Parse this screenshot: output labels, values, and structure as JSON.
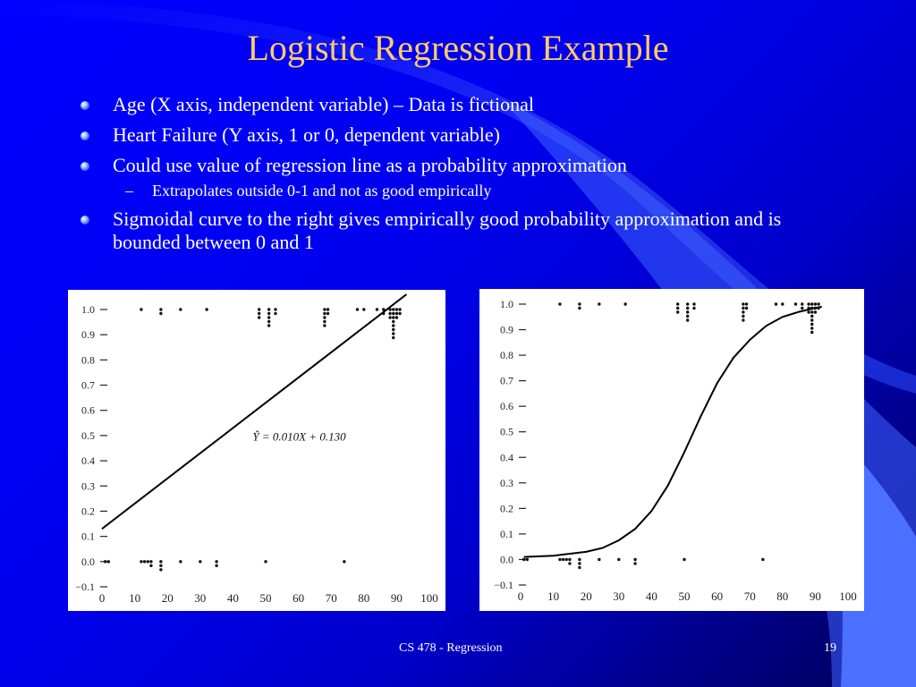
{
  "slide": {
    "title": "Logistic Regression Example",
    "bullets": [
      {
        "text": "Age (X axis, independent variable) – Data is fictional",
        "level": 1
      },
      {
        "text": "Heart Failure (Y axis, 1 or 0, dependent variable)",
        "level": 1
      },
      {
        "text": "Could use value of regression line as a probability approximation",
        "level": 1
      },
      {
        "text": "Extrapolates outside 0-1 and not as good empirically",
        "level": 2
      },
      {
        "text": "Sigmoidal curve to the right gives empirically good probability approximation and is bounded between 0 and 1",
        "level": 1
      }
    ],
    "footer": "CS 478 - Regression",
    "page_number": "19"
  },
  "colors": {
    "title": "#ffcc66",
    "text": "#ffffff",
    "background": "#0000ff"
  },
  "chart_data": [
    {
      "type": "scatter",
      "title": "",
      "xlabel": "",
      "ylabel": "",
      "xlim": [
        0,
        100
      ],
      "ylim": [
        -0.1,
        1.0
      ],
      "x_ticks": [
        0,
        10,
        20,
        30,
        40,
        50,
        60,
        70,
        80,
        90,
        100
      ],
      "y_ticks": [
        1.0,
        0.9,
        0.8,
        0.7,
        0.6,
        0.5,
        0.4,
        0.3,
        0.2,
        0.1,
        0.0,
        -0.1
      ],
      "x_tick_labels": [
        "0",
        "10",
        "20",
        "30",
        "40",
        "50",
        "60",
        "70",
        "80",
        "90",
        "100"
      ],
      "y_tick_labels": [
        "1.0",
        "0.9",
        "0.8",
        "0.7",
        "0.6",
        "0.5",
        "0.4",
        "0.3",
        "0.2",
        "0.1",
        "0.0",
        "−0.1"
      ],
      "points_y1": [
        {
          "x": 12,
          "count": 1
        },
        {
          "x": 18,
          "count": 2
        },
        {
          "x": 24,
          "count": 1
        },
        {
          "x": 32,
          "count": 1
        },
        {
          "x": 48,
          "count": 3
        },
        {
          "x": 51,
          "count": 5
        },
        {
          "x": 53,
          "count": 2
        },
        {
          "x": 68,
          "count": 5
        },
        {
          "x": 69,
          "count": 2
        },
        {
          "x": 78,
          "count": 1
        },
        {
          "x": 80,
          "count": 1
        },
        {
          "x": 84,
          "count": 1
        },
        {
          "x": 86,
          "count": 2
        },
        {
          "x": 88,
          "count": 3
        },
        {
          "x": 89,
          "count": 8
        },
        {
          "x": 90,
          "count": 3
        },
        {
          "x": 91,
          "count": 2
        }
      ],
      "points_y0": [
        {
          "x": 1,
          "count": 1
        },
        {
          "x": 2,
          "count": 1
        },
        {
          "x": 12,
          "count": 1
        },
        {
          "x": 13,
          "count": 1
        },
        {
          "x": 14,
          "count": 1
        },
        {
          "x": 15,
          "count": 2
        },
        {
          "x": 18,
          "count": 3
        },
        {
          "x": 24,
          "count": 1
        },
        {
          "x": 30,
          "count": 1
        },
        {
          "x": 35,
          "count": 2
        },
        {
          "x": 50,
          "count": 1
        },
        {
          "x": 74,
          "count": 1
        }
      ],
      "regression_line": {
        "slope": 0.01,
        "intercept": 0.13
      },
      "annotation": "Ŷ = 0.010X + 0.130"
    },
    {
      "type": "scatter",
      "title": "",
      "xlabel": "",
      "ylabel": "",
      "xlim": [
        0,
        100
      ],
      "ylim": [
        -0.1,
        1.0
      ],
      "x_ticks": [
        0,
        10,
        20,
        30,
        40,
        50,
        60,
        70,
        80,
        90,
        100
      ],
      "y_ticks": [
        1.0,
        0.9,
        0.8,
        0.7,
        0.6,
        0.5,
        0.4,
        0.3,
        0.2,
        0.1,
        0.0,
        -0.1
      ],
      "x_tick_labels": [
        "0",
        "10",
        "20",
        "30",
        "40",
        "50",
        "60",
        "70",
        "80",
        "90",
        "100"
      ],
      "y_tick_labels": [
        "1.0",
        "0.9",
        "0.8",
        "0.7",
        "0.6",
        "0.5",
        "0.4",
        "0.3",
        "0.2",
        "0.1",
        "0.0",
        "−0.1"
      ],
      "points_y1": [
        {
          "x": 12,
          "count": 1
        },
        {
          "x": 18,
          "count": 2
        },
        {
          "x": 24,
          "count": 1
        },
        {
          "x": 32,
          "count": 1
        },
        {
          "x": 48,
          "count": 3
        },
        {
          "x": 51,
          "count": 5
        },
        {
          "x": 53,
          "count": 2
        },
        {
          "x": 68,
          "count": 5
        },
        {
          "x": 69,
          "count": 2
        },
        {
          "x": 78,
          "count": 1
        },
        {
          "x": 80,
          "count": 1
        },
        {
          "x": 84,
          "count": 1
        },
        {
          "x": 86,
          "count": 2
        },
        {
          "x": 88,
          "count": 3
        },
        {
          "x": 89,
          "count": 8
        },
        {
          "x": 90,
          "count": 3
        },
        {
          "x": 91,
          "count": 2
        }
      ],
      "points_y0": [
        {
          "x": 1,
          "count": 1
        },
        {
          "x": 2,
          "count": 1
        },
        {
          "x": 12,
          "count": 1
        },
        {
          "x": 13,
          "count": 1
        },
        {
          "x": 14,
          "count": 1
        },
        {
          "x": 15,
          "count": 2
        },
        {
          "x": 18,
          "count": 3
        },
        {
          "x": 24,
          "count": 1
        },
        {
          "x": 30,
          "count": 1
        },
        {
          "x": 35,
          "count": 2
        },
        {
          "x": 50,
          "count": 1
        },
        {
          "x": 74,
          "count": 1
        }
      ],
      "sigmoid_curve": [
        [
          1,
          0.01
        ],
        [
          10,
          0.015
        ],
        [
          20,
          0.03
        ],
        [
          25,
          0.045
        ],
        [
          30,
          0.075
        ],
        [
          35,
          0.12
        ],
        [
          40,
          0.19
        ],
        [
          45,
          0.29
        ],
        [
          50,
          0.42
        ],
        [
          55,
          0.56
        ],
        [
          60,
          0.69
        ],
        [
          65,
          0.79
        ],
        [
          70,
          0.86
        ],
        [
          75,
          0.915
        ],
        [
          80,
          0.95
        ],
        [
          85,
          0.97
        ],
        [
          90,
          0.985
        ],
        [
          92,
          0.99
        ]
      ]
    }
  ]
}
